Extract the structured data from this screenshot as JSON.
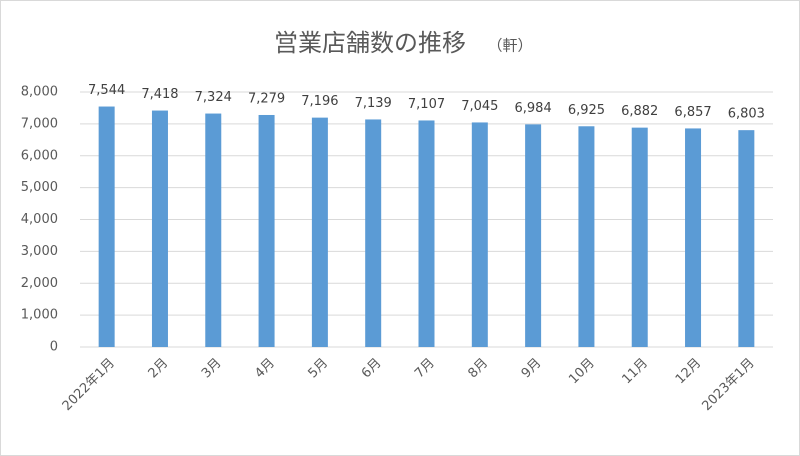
{
  "chart_data": {
    "type": "bar",
    "title": "営業店舗数の推移",
    "title_unit": "（軒）",
    "categories": [
      "2022年1月",
      "2月",
      "3月",
      "4月",
      "5月",
      "6月",
      "7月",
      "8月",
      "9月",
      "10月",
      "11月",
      "12月",
      "2023年1月"
    ],
    "values": [
      7544,
      7418,
      7324,
      7279,
      7196,
      7139,
      7107,
      7045,
      6984,
      6925,
      6882,
      6857,
      6803
    ],
    "value_labels": [
      "7,544",
      "7,418",
      "7,324",
      "7,279",
      "7,196",
      "7,139",
      "7,107",
      "7,045",
      "6,984",
      "6,925",
      "6,882",
      "6,857",
      "6,803"
    ],
    "color": "#5b9bd5",
    "ylim": [
      0,
      8000
    ],
    "yticks": [
      0,
      {
        "value": 1000,
        "label": "1,000"
      },
      {
        "value": 2000,
        "label": "2,000"
      },
      {
        "value": 3000,
        "label": "3,000"
      },
      {
        "value": 4000,
        "label": "4,000"
      },
      {
        "value": 5000,
        "label": "5,000"
      },
      {
        "value": 6000,
        "label": "6,000"
      },
      {
        "value": 7000,
        "label": "7,000"
      },
      {
        "value": 8000,
        "label": "8,000"
      }
    ],
    "grid": true
  }
}
